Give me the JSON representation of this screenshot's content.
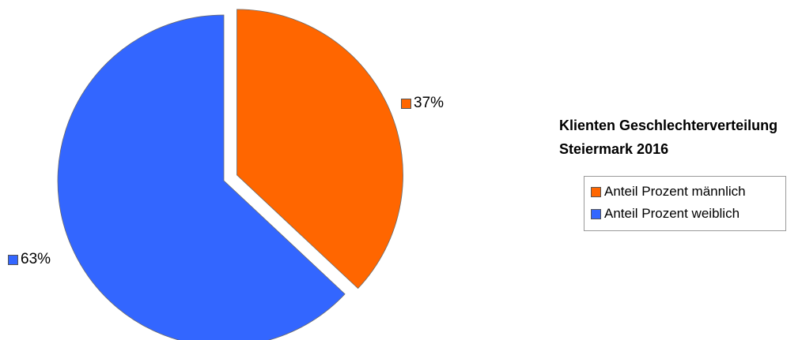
{
  "chart_data": {
    "type": "pie",
    "title": "Klienten Geschlechterverteilung\nSteiermark  2016",
    "categories": [
      "Anteil Prozent männlich",
      "Anteil Prozent weiblich"
    ],
    "values": [
      37,
      63
    ],
    "data_labels": [
      "37%",
      "63%"
    ],
    "colors": [
      "#ff6600",
      "#3366ff"
    ],
    "exploded": [
      true,
      false
    ],
    "legend_position": "right"
  }
}
